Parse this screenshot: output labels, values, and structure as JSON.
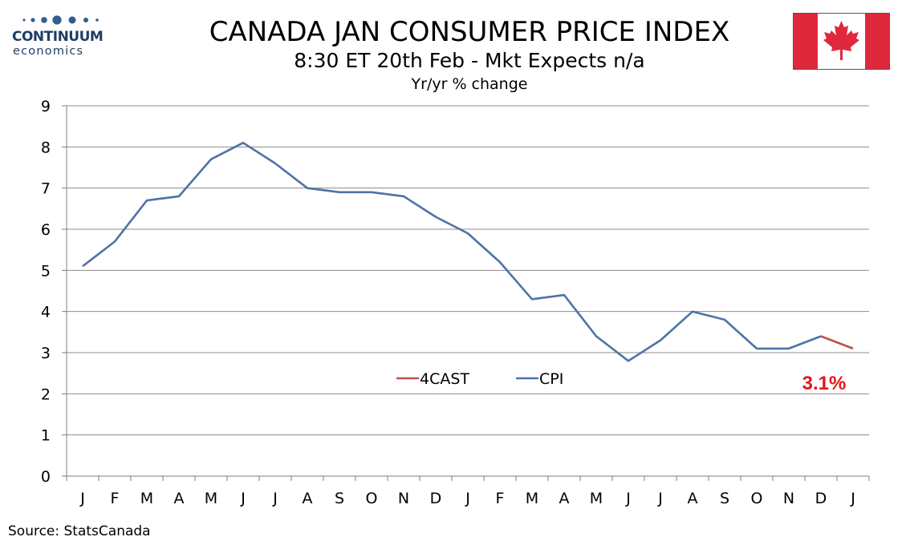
{
  "logo": {
    "word": "CONTINUUM",
    "sub": "economics"
  },
  "header": {
    "title": "CANADA JAN CONSUMER PRICE INDEX",
    "subtitle": "8:30 ET 20th Feb - Mkt Expects n/a",
    "unit": "Yr/yr % change"
  },
  "flag": {
    "icon": "canada-flag-icon",
    "red": "#e0283c",
    "white": "#ffffff"
  },
  "source": "Source: StatsCanada",
  "chart_data": {
    "type": "line",
    "categories": [
      "J",
      "F",
      "M",
      "A",
      "M",
      "J",
      "J",
      "A",
      "S",
      "O",
      "N",
      "D",
      "J",
      "F",
      "M",
      "A",
      "M",
      "J",
      "J",
      "A",
      "S",
      "O",
      "N",
      "D",
      "J"
    ],
    "ylim": [
      0,
      9
    ],
    "yticks": [
      0,
      1,
      2,
      3,
      4,
      5,
      6,
      7,
      8,
      9
    ],
    "grid": true,
    "legend_placement": "center-bottom",
    "series": [
      {
        "name": "4CAST",
        "color": "#c0504d",
        "values": [
          null,
          null,
          null,
          null,
          null,
          null,
          null,
          null,
          null,
          null,
          null,
          null,
          null,
          null,
          null,
          null,
          null,
          null,
          null,
          null,
          null,
          null,
          null,
          3.4,
          3.1
        ]
      },
      {
        "name": "CPI",
        "color": "#4f72a8",
        "values": [
          5.1,
          5.7,
          6.7,
          6.8,
          7.7,
          8.1,
          7.6,
          7.0,
          6.9,
          6.9,
          6.8,
          6.3,
          5.9,
          5.2,
          4.3,
          4.4,
          3.4,
          2.8,
          3.3,
          4.0,
          3.8,
          3.1,
          3.1,
          3.4,
          null
        ]
      }
    ],
    "annotation": {
      "text": "3.1%",
      "color": "#e3161a"
    }
  }
}
